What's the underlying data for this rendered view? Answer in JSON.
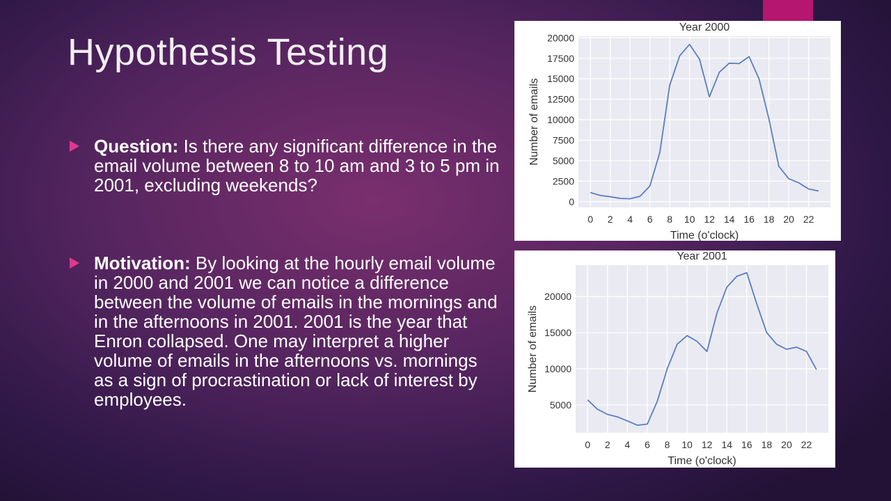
{
  "slide": {
    "title": "Hypothesis Testing",
    "accent_color": "#b5166f",
    "bullet_marker_color": "#e0388f",
    "bullets": [
      {
        "label": "Question:",
        "text": "Is there any significant difference in the email volume between 8 to 10 am and 3 to 5 pm in 2001, excluding weekends?"
      },
      {
        "label": "Motivation:",
        "text": "By looking at the hourly email volume in 2000 and 2001 we can notice a difference between the volume of emails in the mornings and in the afternoons in 2001. 2001 is the year that Enron collapsed. One may interpret a higher volume of emails in the afternoons vs. mornings as a sign of procrastination or lack of interest by employees."
      }
    ]
  },
  "chart_data": [
    {
      "type": "line",
      "title": "Year 2000",
      "xlabel": "Time (o'clock)",
      "ylabel": "Number of emails",
      "x": [
        0,
        1,
        2,
        3,
        4,
        5,
        6,
        7,
        8,
        9,
        10,
        11,
        12,
        13,
        14,
        15,
        16,
        17,
        18,
        19,
        20,
        21,
        22,
        23
      ],
      "values": [
        1100,
        750,
        600,
        400,
        350,
        650,
        1900,
        6000,
        14200,
        17800,
        19200,
        17400,
        12800,
        15800,
        16900,
        16850,
        17700,
        15000,
        10100,
        4300,
        2800,
        2300,
        1550,
        1300
      ],
      "xticks": [
        0,
        2,
        4,
        6,
        8,
        10,
        12,
        14,
        16,
        18,
        20,
        22
      ],
      "yticks": [
        0,
        2500,
        5000,
        7500,
        10000,
        12500,
        15000,
        17500,
        20000
      ],
      "xlim": [
        -1.2,
        24.2
      ],
      "ylim": [
        -700,
        20200
      ],
      "grid": true,
      "line_color": "#5a7ebf",
      "background": "#eaeaf2"
    },
    {
      "type": "line",
      "title": "Year 2001",
      "xlabel": "Time (o'clock)",
      "ylabel": "Number of emails",
      "x": [
        0,
        1,
        2,
        3,
        4,
        5,
        6,
        7,
        8,
        9,
        10,
        11,
        12,
        13,
        14,
        15,
        16,
        17,
        18,
        19,
        20,
        21,
        22,
        23
      ],
      "values": [
        5700,
        4400,
        3700,
        3350,
        2800,
        2200,
        2350,
        5500,
        10000,
        13400,
        14600,
        13800,
        12400,
        17700,
        21300,
        22800,
        23300,
        19000,
        15000,
        13400,
        12700,
        13000,
        12400,
        9900
      ],
      "xticks": [
        0,
        2,
        4,
        6,
        8,
        10,
        12,
        14,
        16,
        18,
        20,
        22
      ],
      "yticks": [
        5000,
        10000,
        15000,
        20000
      ],
      "xlim": [
        -1.2,
        24.2
      ],
      "ylim": [
        1150,
        24350
      ],
      "grid": true,
      "line_color": "#5a7ebf",
      "background": "#eaeaf2"
    }
  ]
}
